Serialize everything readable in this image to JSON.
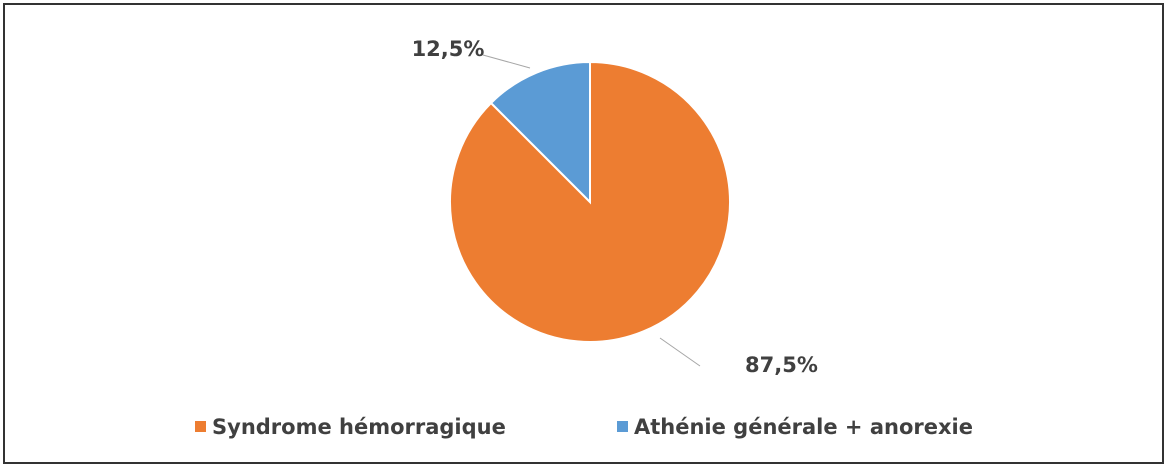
{
  "chart_data": {
    "type": "pie",
    "categories": [
      "Syndrome hémorragique",
      "Athénie générale + anorexie"
    ],
    "values": [
      87.5,
      12.5
    ],
    "value_labels": [
      "87,5%",
      "12,5%"
    ],
    "colors": [
      "#ED7D31",
      "#5B9BD5"
    ],
    "legend": "bottom"
  }
}
